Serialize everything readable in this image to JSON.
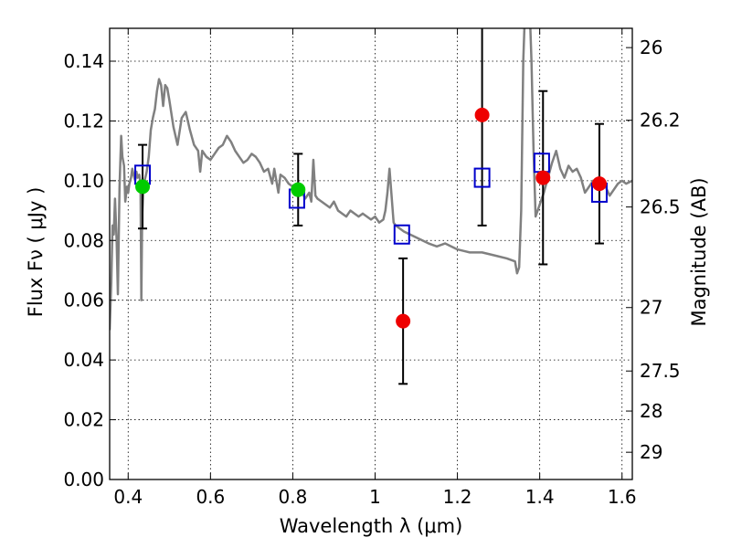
{
  "chart_data": {
    "type": "scatter",
    "title": "",
    "xlabel": "Wavelength  λ (μm)",
    "ylabel": "Flux  Fν  ( μJy )",
    "y2label": "Magnitude (AB)",
    "xlim": [
      0.355,
      1.625
    ],
    "ylim": [
      0.0,
      0.151
    ],
    "grid": true,
    "x_ticks": [
      {
        "value": 0.4,
        "label": "0.4"
      },
      {
        "value": 0.6,
        "label": "0.6"
      },
      {
        "value": 0.8,
        "label": "0.8"
      },
      {
        "value": 1.0,
        "label": "1"
      },
      {
        "value": 1.2,
        "label": "1.2"
      },
      {
        "value": 1.4,
        "label": "1.4"
      },
      {
        "value": 1.6,
        "label": "1.6"
      }
    ],
    "y_ticks": [
      {
        "value": 0.0,
        "label": "0.00"
      },
      {
        "value": 0.02,
        "label": "0.02"
      },
      {
        "value": 0.04,
        "label": "0.04"
      },
      {
        "value": 0.06,
        "label": "0.06"
      },
      {
        "value": 0.08,
        "label": "0.08"
      },
      {
        "value": 0.1,
        "label": "0.10"
      },
      {
        "value": 0.12,
        "label": "0.12"
      },
      {
        "value": 0.14,
        "label": "0.14"
      }
    ],
    "y2_ticks": [
      {
        "value": 26,
        "label": "26"
      },
      {
        "value": 26.2,
        "label": "26.2"
      },
      {
        "value": 26.5,
        "label": "26.5"
      },
      {
        "value": 27,
        "label": "27"
      },
      {
        "value": 27.5,
        "label": "27.5"
      },
      {
        "value": 28,
        "label": "28"
      },
      {
        "value": 29,
        "label": "29"
      }
    ],
    "series": [
      {
        "kind": "line",
        "color": "#808080",
        "points": [
          [
            0.355,
            0.05
          ],
          [
            0.359,
            0.066
          ],
          [
            0.362,
            0.085
          ],
          [
            0.365,
            0.082
          ],
          [
            0.368,
            0.094
          ],
          [
            0.372,
            0.08
          ],
          [
            0.375,
            0.062
          ],
          [
            0.379,
            0.098
          ],
          [
            0.383,
            0.115
          ],
          [
            0.386,
            0.108
          ],
          [
            0.39,
            0.105
          ],
          [
            0.393,
            0.093
          ],
          [
            0.397,
            0.098
          ],
          [
            0.4,
            0.096
          ],
          [
            0.403,
            0.099
          ],
          [
            0.407,
            0.101
          ],
          [
            0.41,
            0.104
          ],
          [
            0.413,
            0.102
          ],
          [
            0.417,
            0.1
          ],
          [
            0.42,
            0.103
          ],
          [
            0.423,
            0.101
          ],
          [
            0.427,
            0.102
          ],
          [
            0.43,
            0.099
          ],
          [
            0.432,
            0.06
          ],
          [
            0.434,
            0.088
          ],
          [
            0.437,
            0.098
          ],
          [
            0.44,
            0.1
          ],
          [
            0.445,
            0.103
          ],
          [
            0.45,
            0.108
          ],
          [
            0.455,
            0.117
          ],
          [
            0.46,
            0.121
          ],
          [
            0.465,
            0.124
          ],
          [
            0.47,
            0.13
          ],
          [
            0.475,
            0.134
          ],
          [
            0.48,
            0.132
          ],
          [
            0.485,
            0.125
          ],
          [
            0.49,
            0.132
          ],
          [
            0.495,
            0.131
          ],
          [
            0.5,
            0.127
          ],
          [
            0.51,
            0.118
          ],
          [
            0.52,
            0.112
          ],
          [
            0.53,
            0.121
          ],
          [
            0.54,
            0.123
          ],
          [
            0.55,
            0.117
          ],
          [
            0.56,
            0.112
          ],
          [
            0.57,
            0.11
          ],
          [
            0.575,
            0.103
          ],
          [
            0.58,
            0.11
          ],
          [
            0.59,
            0.108
          ],
          [
            0.6,
            0.107
          ],
          [
            0.61,
            0.109
          ],
          [
            0.62,
            0.111
          ],
          [
            0.63,
            0.112
          ],
          [
            0.64,
            0.115
          ],
          [
            0.65,
            0.113
          ],
          [
            0.66,
            0.11
          ],
          [
            0.67,
            0.108
          ],
          [
            0.68,
            0.106
          ],
          [
            0.69,
            0.107
          ],
          [
            0.7,
            0.109
          ],
          [
            0.71,
            0.108
          ],
          [
            0.72,
            0.106
          ],
          [
            0.73,
            0.103
          ],
          [
            0.74,
            0.104
          ],
          [
            0.75,
            0.099
          ],
          [
            0.755,
            0.104
          ],
          [
            0.76,
            0.1
          ],
          [
            0.765,
            0.096
          ],
          [
            0.77,
            0.102
          ],
          [
            0.78,
            0.101
          ],
          [
            0.79,
            0.099
          ],
          [
            0.8,
            0.098
          ],
          [
            0.81,
            0.095
          ],
          [
            0.82,
            0.097
          ],
          [
            0.83,
            0.094
          ],
          [
            0.84,
            0.096
          ],
          [
            0.845,
            0.093
          ],
          [
            0.85,
            0.107
          ],
          [
            0.855,
            0.095
          ],
          [
            0.86,
            0.094
          ],
          [
            0.87,
            0.093
          ],
          [
            0.88,
            0.092
          ],
          [
            0.89,
            0.091
          ],
          [
            0.9,
            0.093
          ],
          [
            0.91,
            0.09
          ],
          [
            0.92,
            0.089
          ],
          [
            0.93,
            0.088
          ],
          [
            0.94,
            0.09
          ],
          [
            0.95,
            0.089
          ],
          [
            0.96,
            0.088
          ],
          [
            0.97,
            0.089
          ],
          [
            0.98,
            0.088
          ],
          [
            0.99,
            0.087
          ],
          [
            1.0,
            0.088
          ],
          [
            1.01,
            0.086
          ],
          [
            1.02,
            0.087
          ],
          [
            1.025,
            0.09
          ],
          [
            1.03,
            0.096
          ],
          [
            1.035,
            0.104
          ],
          [
            1.04,
            0.095
          ],
          [
            1.045,
            0.086
          ],
          [
            1.05,
            0.085
          ],
          [
            1.07,
            0.083
          ],
          [
            1.1,
            0.081
          ],
          [
            1.13,
            0.079
          ],
          [
            1.15,
            0.078
          ],
          [
            1.17,
            0.079
          ],
          [
            1.2,
            0.077
          ],
          [
            1.23,
            0.076
          ],
          [
            1.26,
            0.076
          ],
          [
            1.29,
            0.075
          ],
          [
            1.32,
            0.074
          ],
          [
            1.34,
            0.073
          ],
          [
            1.345,
            0.069
          ],
          [
            1.35,
            0.071
          ],
          [
            1.355,
            0.09
          ],
          [
            1.36,
            0.14
          ],
          [
            1.365,
            0.16
          ],
          [
            1.37,
            0.16
          ],
          [
            1.375,
            0.16
          ],
          [
            1.38,
            0.14
          ],
          [
            1.385,
            0.11
          ],
          [
            1.39,
            0.088
          ],
          [
            1.4,
            0.092
          ],
          [
            1.41,
            0.096
          ],
          [
            1.42,
            0.101
          ],
          [
            1.43,
            0.106
          ],
          [
            1.44,
            0.11
          ],
          [
            1.45,
            0.104
          ],
          [
            1.46,
            0.101
          ],
          [
            1.47,
            0.105
          ],
          [
            1.48,
            0.103
          ],
          [
            1.49,
            0.104
          ],
          [
            1.5,
            0.101
          ],
          [
            1.51,
            0.096
          ],
          [
            1.52,
            0.098
          ],
          [
            1.53,
            0.1
          ],
          [
            1.54,
            0.097
          ],
          [
            1.55,
            0.099
          ],
          [
            1.56,
            0.098
          ],
          [
            1.57,
            0.095
          ],
          [
            1.58,
            0.097
          ],
          [
            1.59,
            0.099
          ],
          [
            1.6,
            0.1
          ],
          [
            1.61,
            0.099
          ],
          [
            1.625,
            0.1
          ]
        ]
      },
      {
        "kind": "points",
        "marker": "square",
        "color": "#0000cc",
        "points": [
          [
            0.435,
            0.102
          ],
          [
            0.81,
            0.094
          ],
          [
            1.065,
            0.082
          ],
          [
            1.26,
            0.101
          ],
          [
            1.405,
            0.106
          ],
          [
            1.545,
            0.096
          ]
        ]
      },
      {
        "kind": "points",
        "marker": "circle",
        "color": "#00cc00",
        "points": [
          [
            0.435,
            0.098,
            0.014
          ],
          [
            0.813,
            0.097,
            0.012
          ]
        ]
      },
      {
        "kind": "points",
        "marker": "circle",
        "color": "#ee0000",
        "points": [
          [
            1.068,
            0.053,
            0.021
          ],
          [
            1.26,
            0.122,
            0.037
          ],
          [
            1.408,
            0.101,
            0.029
          ],
          [
            1.545,
            0.099,
            0.02
          ]
        ]
      }
    ]
  }
}
